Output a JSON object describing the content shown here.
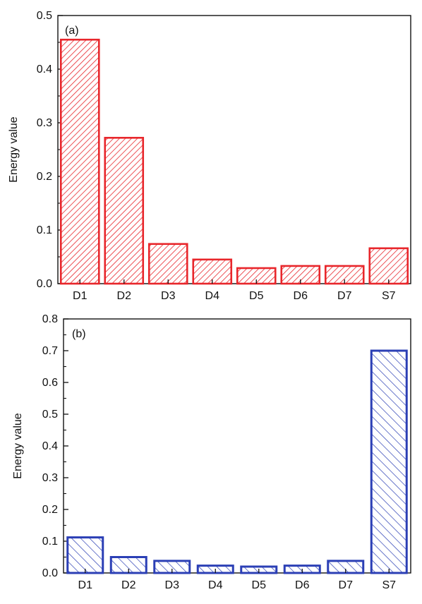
{
  "chart_data": [
    {
      "type": "bar",
      "panel_label": "(a)",
      "categories": [
        "D1",
        "D2",
        "D3",
        "D4",
        "D5",
        "D6",
        "D7",
        "S7"
      ],
      "values": [
        0.455,
        0.272,
        0.074,
        0.045,
        0.029,
        0.033,
        0.033,
        0.066
      ],
      "xlabel": "",
      "ylabel": "Energy value",
      "ylim": [
        0,
        0.5
      ],
      "yticks": [
        "0.0",
        "0.1",
        "0.2",
        "0.3",
        "0.4",
        "0.5"
      ],
      "bar_color": "#e8262b",
      "hatch": "forward-diagonal",
      "grid": false
    },
    {
      "type": "bar",
      "panel_label": "(b)",
      "categories": [
        "D1",
        "D2",
        "D3",
        "D4",
        "D5",
        "D6",
        "D7",
        "S7"
      ],
      "values": [
        0.112,
        0.05,
        0.038,
        0.023,
        0.02,
        0.023,
        0.038,
        0.7
      ],
      "xlabel": "",
      "ylabel": "Energy value",
      "ylim": [
        0,
        0.8
      ],
      "yticks": [
        "0.0",
        "0.1",
        "0.2",
        "0.3",
        "0.4",
        "0.5",
        "0.6",
        "0.7",
        "0.8"
      ],
      "bar_color": "#2b3fb5",
      "hatch": "backward-diagonal",
      "grid": false
    }
  ]
}
